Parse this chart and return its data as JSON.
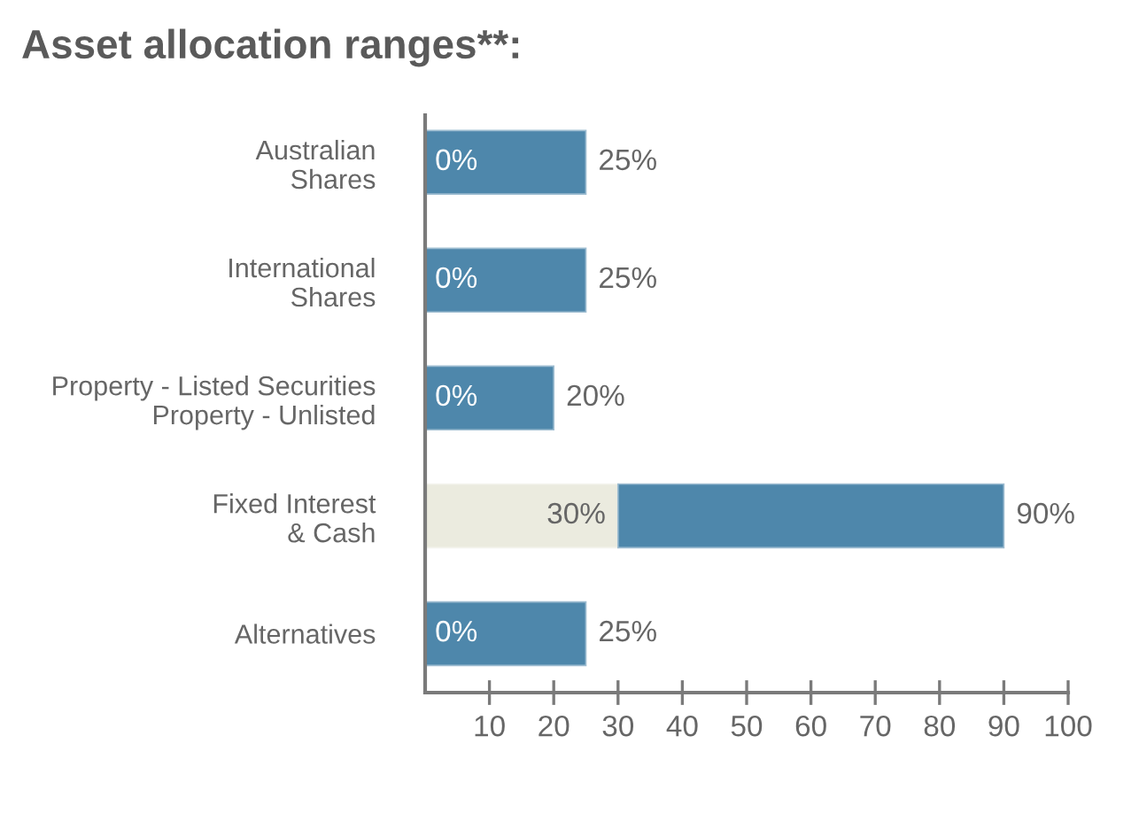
{
  "chart_data": {
    "type": "bar",
    "orientation": "horizontal",
    "stacked": true,
    "title": "Asset allocation ranges**:",
    "categories": [
      "Australian\nShares",
      "International\nShares",
      "Property - Listed Securities\nProperty - Unlisted",
      "Fixed Interest\n& Cash",
      "Alternatives"
    ],
    "series": [
      {
        "color": "#ebebdf",
        "values": [
          null,
          null,
          null,
          30,
          null
        ]
      },
      {
        "color": "#4e87ab",
        "values": [
          25,
          25,
          20,
          60,
          25
        ]
      }
    ],
    "xlim": [
      0,
      100
    ],
    "xticks": [
      10,
      20,
      30,
      40,
      50,
      60,
      70,
      80,
      90,
      100
    ],
    "annotations": [
      {
        "text": "0%",
        "x": 0,
        "y": "Australian\nShares"
      },
      {
        "text": "25%",
        "x": 25,
        "y": "Australian\nShares"
      },
      {
        "text": "0%",
        "x": 0,
        "y": "International\nShares"
      },
      {
        "text": "25%",
        "x": 25,
        "y": "International\nShares"
      },
      {
        "text": "0%",
        "x": 0,
        "y": "Property - Listed Securities\nProperty - Unlisted"
      },
      {
        "text": "20%",
        "x": 20,
        "y": "Property - Listed Securities\nProperty - Unlisted"
      },
      {
        "text": "30%",
        "x": 30,
        "y": "Fixed Interest\n& Cash"
      },
      {
        "text": "90%",
        "x": 90,
        "y": "Fixed Interest\n& Cash"
      },
      {
        "text": "0%",
        "x": 0,
        "y": "Alternatives"
      },
      {
        "text": "25%",
        "x": 25,
        "y": "Alternatives"
      }
    ]
  }
}
